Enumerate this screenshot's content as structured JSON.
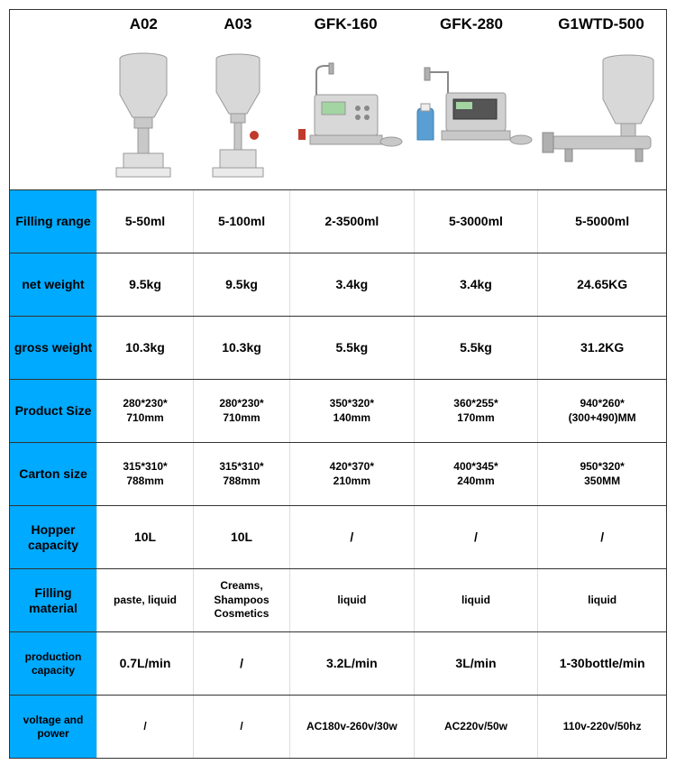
{
  "colors": {
    "header_bg": "#00aaff",
    "border": "#333333",
    "cell_border": "#dddddd",
    "background": "#ffffff"
  },
  "products": [
    {
      "name": "A02",
      "svg_key": "a02"
    },
    {
      "name": "A03",
      "svg_key": "a03"
    },
    {
      "name": "GFK-160",
      "svg_key": "gfk160"
    },
    {
      "name": "GFK-280",
      "svg_key": "gfk280"
    },
    {
      "name": "G1WTD-500",
      "svg_key": "g1wtd500"
    }
  ],
  "rows": [
    {
      "label": "Filling\nrange",
      "label_class": "",
      "cells": [
        "5-50ml",
        "5-100ml",
        "2-3500ml",
        "5-3000ml",
        "5-5000ml"
      ]
    },
    {
      "label": "net\nweight",
      "label_class": "",
      "cells": [
        "9.5kg",
        "9.5kg",
        "3.4kg",
        "3.4kg",
        "24.65KG"
      ]
    },
    {
      "label": "gross\nweight",
      "label_class": "",
      "cells": [
        "10.3kg",
        "10.3kg",
        "5.5kg",
        "5.5kg",
        "31.2KG"
      ]
    },
    {
      "label": "Product\nSize",
      "label_class": "",
      "cell_class": "sm",
      "cells": [
        "280*230*\n710mm",
        "280*230*\n710mm",
        "350*320*\n140mm",
        "360*255*\n170mm",
        "940*260*\n(300+490)MM"
      ]
    },
    {
      "label": "Carton\nsize",
      "label_class": "",
      "cell_class": "sm",
      "cells": [
        "315*310*\n788mm",
        "315*310*\n788mm",
        "420*370*\n210mm",
        "400*345*\n240mm",
        "950*320*\n350MM"
      ]
    },
    {
      "label": "Hopper\ncapacity",
      "label_class": "",
      "cells": [
        "10L",
        "10L",
        "/",
        "/",
        "/"
      ]
    },
    {
      "label": "Filling\nmaterial",
      "label_class": "",
      "cell_class": "sm",
      "cells": [
        "paste, liquid",
        "Creams, Shampoos\nCosmetics",
        "liquid",
        "liquid",
        "liquid"
      ]
    },
    {
      "label": "production\ncapacity",
      "label_class": "sm",
      "cells": [
        "0.7L/min",
        "/",
        "3.2L/min",
        "3L/min",
        "1-30bottle/min"
      ]
    },
    {
      "label": "voltage\nand power",
      "label_class": "sm",
      "cell_class": "sm",
      "cells": [
        "/",
        "/",
        "AC180v-260v/30w",
        "AC220v/50w",
        "110v-220v/50hz"
      ]
    }
  ]
}
